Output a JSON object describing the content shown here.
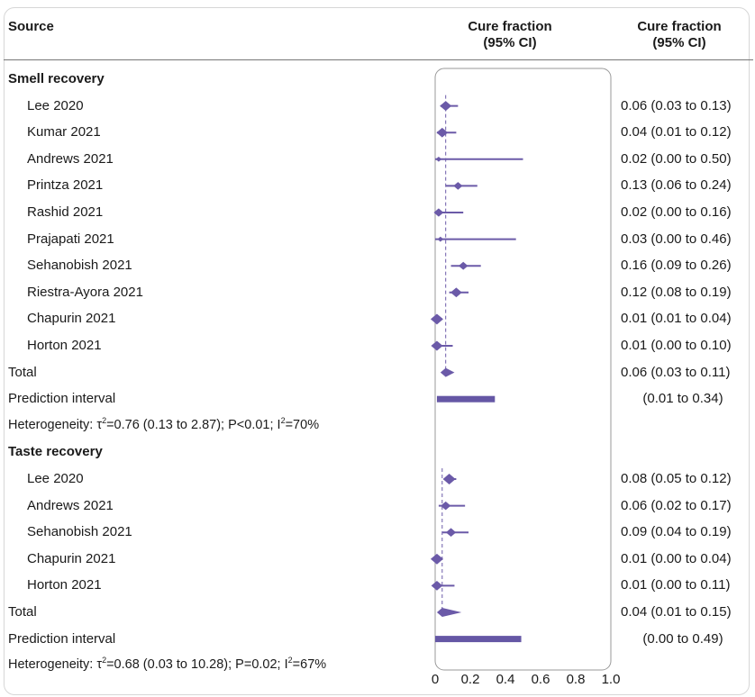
{
  "header": {
    "source": "Source",
    "col_plot": [
      "Cure fraction",
      "(95% CI)"
    ],
    "col_value": [
      "Cure fraction",
      "(95% CI)"
    ]
  },
  "colors": {
    "marker": "#6b5aa8",
    "pi_bar": "#6557a5",
    "dashed": "#6b5aa8",
    "plot_border": "#9a9a9a"
  },
  "chart_data": {
    "type": "forest",
    "xlim": [
      0,
      1
    ],
    "xticks": [
      0,
      0.2,
      0.4,
      0.6,
      0.8,
      1.0
    ],
    "xtick_labels": [
      "0",
      "0.2",
      "0.4",
      "0.6",
      "0.8",
      "1.0"
    ],
    "sections": [
      {
        "title": "Smell recovery",
        "pooled_estimate": 0.06,
        "studies": [
          {
            "label": "Lee 2020",
            "est": 0.06,
            "lo": 0.03,
            "hi": 0.13,
            "text": "0.06 (0.03 to 0.13)"
          },
          {
            "label": "Kumar 2021",
            "est": 0.04,
            "lo": 0.01,
            "hi": 0.12,
            "text": "0.04 (0.01 to 0.12)"
          },
          {
            "label": "Andrews 2021",
            "est": 0.02,
            "lo": 0.0,
            "hi": 0.5,
            "text": "0.02 (0.00 to 0.50)"
          },
          {
            "label": "Printza 2021",
            "est": 0.13,
            "lo": 0.06,
            "hi": 0.24,
            "text": "0.13 (0.06 to 0.24)"
          },
          {
            "label": "Rashid 2021",
            "est": 0.02,
            "lo": 0.0,
            "hi": 0.16,
            "text": "0.02 (0.00 to 0.16)"
          },
          {
            "label": "Prajapati 2021",
            "est": 0.03,
            "lo": 0.0,
            "hi": 0.46,
            "text": "0.03 (0.00 to 0.46)"
          },
          {
            "label": "Sehanobish 2021",
            "est": 0.16,
            "lo": 0.09,
            "hi": 0.26,
            "text": "0.16 (0.09 to 0.26)"
          },
          {
            "label": "Riestra-Ayora 2021",
            "est": 0.12,
            "lo": 0.08,
            "hi": 0.19,
            "text": "0.12 (0.08 to 0.19)"
          },
          {
            "label": "Chapurin 2021",
            "est": 0.01,
            "lo": 0.01,
            "hi": 0.04,
            "text": "0.01 (0.01 to 0.04)"
          },
          {
            "label": "Horton 2021",
            "est": 0.01,
            "lo": 0.0,
            "hi": 0.1,
            "text": "0.01 (0.00 to 0.10)"
          }
        ],
        "total": {
          "label": "Total",
          "est": 0.06,
          "lo": 0.03,
          "hi": 0.11,
          "text": "0.06 (0.03 to 0.11)"
        },
        "prediction": {
          "label": "Prediction interval",
          "lo": 0.01,
          "hi": 0.34,
          "text": "(0.01 to 0.34)"
        },
        "heterogeneity": {
          "prefix": "Heterogeneity: τ",
          "sup1": "2",
          "mid": "=0.76 (0.13 to 2.87); P<0.01; I",
          "sup2": "2",
          "suffix": "=70%"
        }
      },
      {
        "title": "Taste recovery",
        "pooled_estimate": 0.04,
        "studies": [
          {
            "label": "Lee 2020",
            "est": 0.08,
            "lo": 0.05,
            "hi": 0.12,
            "text": "0.08 (0.05 to 0.12)"
          },
          {
            "label": "Andrews 2021",
            "est": 0.06,
            "lo": 0.02,
            "hi": 0.17,
            "text": "0.06 (0.02 to 0.17)"
          },
          {
            "label": "Sehanobish 2021",
            "est": 0.09,
            "lo": 0.04,
            "hi": 0.19,
            "text": "0.09 (0.04 to 0.19)"
          },
          {
            "label": "Chapurin 2021",
            "est": 0.01,
            "lo": 0.0,
            "hi": 0.04,
            "text": "0.01 (0.00 to 0.04)"
          },
          {
            "label": "Horton 2021",
            "est": 0.01,
            "lo": 0.0,
            "hi": 0.11,
            "text": "0.01 (0.00 to 0.11)"
          }
        ],
        "total": {
          "label": "Total",
          "est": 0.04,
          "lo": 0.01,
          "hi": 0.15,
          "text": "0.04 (0.01 to 0.15)"
        },
        "prediction": {
          "label": "Prediction interval",
          "lo": 0.0,
          "hi": 0.49,
          "text": "(0.00 to 0.49)"
        },
        "heterogeneity": {
          "prefix": "Heterogeneity: τ",
          "sup1": "2",
          "mid": "=0.68 (0.03 to 10.28); P=0.02; I",
          "sup2": "2",
          "suffix": "=67%"
        }
      }
    ]
  }
}
